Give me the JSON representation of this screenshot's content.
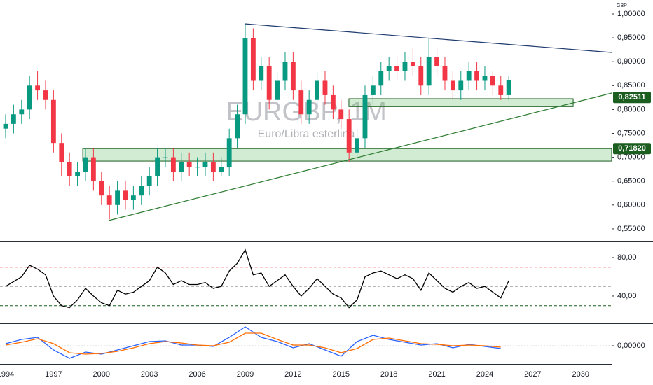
{
  "chart_data": [
    {
      "type": "candlestick",
      "title": "EURGBP, 1M",
      "subtitle": "Euro/Libra esterlina",
      "currency": "GBP",
      "up_color": "#089981",
      "down_color": "#f23645",
      "grid": false,
      "x": [
        1994.0,
        1994.5,
        1995.0,
        1995.5,
        1996.0,
        1996.5,
        1997.0,
        1997.5,
        1998.0,
        1998.5,
        1999.0,
        1999.5,
        2000.0,
        2000.5,
        2001.0,
        2001.5,
        2002.0,
        2002.5,
        2003.0,
        2003.5,
        2004.0,
        2004.5,
        2005.0,
        2005.5,
        2006.0,
        2006.5,
        2007.0,
        2007.5,
        2008.0,
        2008.5,
        2009.0,
        2009.5,
        2010.0,
        2010.5,
        2011.0,
        2011.5,
        2012.0,
        2012.5,
        2013.0,
        2013.5,
        2014.0,
        2014.5,
        2015.0,
        2015.5,
        2016.0,
        2016.5,
        2017.0,
        2017.5,
        2018.0,
        2018.5,
        2019.0,
        2019.5,
        2020.0,
        2020.5,
        2021.0,
        2021.5,
        2022.0,
        2022.5,
        2023.0,
        2023.5,
        2024.0,
        2024.5,
        2025.0,
        2025.5
      ],
      "open": [
        0.76,
        0.77,
        0.79,
        0.8,
        0.85,
        0.84,
        0.82,
        0.73,
        0.69,
        0.66,
        0.67,
        0.7,
        0.65,
        0.62,
        0.6,
        0.63,
        0.61,
        0.62,
        0.64,
        0.66,
        0.7,
        0.7,
        0.67,
        0.69,
        0.68,
        0.68,
        0.69,
        0.67,
        0.68,
        0.74,
        0.79,
        0.95,
        0.86,
        0.89,
        0.82,
        0.86,
        0.9,
        0.84,
        0.79,
        0.82,
        0.86,
        0.83,
        0.8,
        0.78,
        0.71,
        0.74,
        0.83,
        0.85,
        0.88,
        0.89,
        0.88,
        0.9,
        0.89,
        0.85,
        0.91,
        0.89,
        0.86,
        0.84,
        0.86,
        0.88,
        0.86,
        0.87,
        0.85,
        0.83
      ],
      "high": [
        0.79,
        0.81,
        0.82,
        0.87,
        0.88,
        0.86,
        0.84,
        0.75,
        0.71,
        0.69,
        0.72,
        0.72,
        0.67,
        0.64,
        0.65,
        0.65,
        0.64,
        0.66,
        0.68,
        0.72,
        0.72,
        0.72,
        0.71,
        0.71,
        0.7,
        0.71,
        0.71,
        0.7,
        0.76,
        0.81,
        0.98,
        0.97,
        0.91,
        0.91,
        0.88,
        0.92,
        0.92,
        0.86,
        0.84,
        0.88,
        0.88,
        0.85,
        0.82,
        0.8,
        0.76,
        0.85,
        0.87,
        0.9,
        0.91,
        0.91,
        0.92,
        0.93,
        0.91,
        0.95,
        0.93,
        0.91,
        0.88,
        0.88,
        0.9,
        0.9,
        0.89,
        0.88,
        0.87,
        0.87
      ],
      "low": [
        0.74,
        0.75,
        0.77,
        0.78,
        0.82,
        0.8,
        0.71,
        0.66,
        0.64,
        0.64,
        0.65,
        0.63,
        0.6,
        0.57,
        0.58,
        0.59,
        0.59,
        0.6,
        0.62,
        0.64,
        0.68,
        0.65,
        0.65,
        0.66,
        0.66,
        0.66,
        0.65,
        0.66,
        0.66,
        0.72,
        0.77,
        0.84,
        0.84,
        0.8,
        0.8,
        0.84,
        0.82,
        0.77,
        0.77,
        0.8,
        0.81,
        0.78,
        0.76,
        0.69,
        0.69,
        0.72,
        0.81,
        0.83,
        0.86,
        0.86,
        0.86,
        0.87,
        0.83,
        0.83,
        0.87,
        0.84,
        0.82,
        0.82,
        0.84,
        0.84,
        0.84,
        0.83,
        0.82,
        0.82
      ],
      "close": [
        0.77,
        0.79,
        0.8,
        0.85,
        0.84,
        0.82,
        0.73,
        0.69,
        0.66,
        0.67,
        0.7,
        0.65,
        0.62,
        0.6,
        0.63,
        0.61,
        0.62,
        0.64,
        0.66,
        0.7,
        0.7,
        0.67,
        0.69,
        0.68,
        0.68,
        0.69,
        0.67,
        0.68,
        0.74,
        0.79,
        0.95,
        0.86,
        0.89,
        0.82,
        0.86,
        0.9,
        0.84,
        0.79,
        0.82,
        0.86,
        0.83,
        0.8,
        0.78,
        0.71,
        0.74,
        0.83,
        0.85,
        0.88,
        0.89,
        0.88,
        0.9,
        0.89,
        0.85,
        0.91,
        0.89,
        0.86,
        0.84,
        0.86,
        0.88,
        0.86,
        0.87,
        0.85,
        0.83,
        0.862
      ],
      "xlim": [
        1993.65,
        2031.94
      ],
      "xticks": [
        1994,
        1997,
        2000,
        2003,
        2006,
        2009,
        2012,
        2015,
        2018,
        2021,
        2024,
        2027,
        2030
      ],
      "ylim": [
        0.5235,
        1.0293
      ],
      "yticks": [
        {
          "value": 0.55,
          "label": "0,55000"
        },
        {
          "value": 0.6,
          "label": "0,60000"
        },
        {
          "value": 0.65,
          "label": "0,65000"
        },
        {
          "value": 0.7,
          "label": "0,70000"
        },
        {
          "value": 0.75,
          "label": "0,75000"
        },
        {
          "value": 0.8,
          "label": "0,80000"
        },
        {
          "value": 0.85,
          "label": "0,85000"
        },
        {
          "value": 0.9,
          "label": "0,90000"
        },
        {
          "value": 0.95,
          "label": "0,95000"
        },
        {
          "value": 1.0,
          "label": "1,00000"
        }
      ],
      "zones": [
        {
          "x": [
            1998.83,
            2031.94
          ],
          "y": [
            0.692,
            0.7182
          ]
        },
        {
          "x": [
            2015.49,
            2029.53
          ],
          "y": [
            0.806,
            0.8226
          ]
        }
      ],
      "trendlines": [
        {
          "x": [
            2008.96,
            2031.94
          ],
          "y": [
            0.9795,
            0.9193
          ],
          "color": "#1e3a6e"
        },
        {
          "x": [
            2000.45,
            2031.94
          ],
          "y": [
            0.5675,
            0.8343
          ],
          "color": "#2e7d32"
        }
      ],
      "price_labels": [
        {
          "value": 0.82511,
          "label": "0,82511"
        },
        {
          "value": 0.7182,
          "label": "0,71820"
        }
      ],
      "price_label_color": "#1b5e20"
    },
    {
      "type": "line",
      "color": "#000000",
      "x": [
        1994.0,
        1994.5,
        1995.0,
        1995.5,
        1996.0,
        1996.5,
        1997.0,
        1997.5,
        1998.0,
        1998.5,
        1999.0,
        1999.5,
        2000.0,
        2000.5,
        2001.0,
        2001.5,
        2002.0,
        2002.5,
        2003.0,
        2003.5,
        2004.0,
        2004.5,
        2005.0,
        2005.5,
        2006.0,
        2006.5,
        2007.0,
        2007.5,
        2008.0,
        2008.5,
        2009.0,
        2009.5,
        2010.0,
        2010.5,
        2011.0,
        2011.5,
        2012.0,
        2012.5,
        2013.0,
        2013.5,
        2014.0,
        2014.5,
        2015.0,
        2015.5,
        2016.0,
        2016.5,
        2017.0,
        2017.5,
        2018.0,
        2018.5,
        2019.0,
        2019.5,
        2020.0,
        2020.5,
        2021.0,
        2021.5,
        2022.0,
        2022.5,
        2023.0,
        2023.5,
        2024.0,
        2024.5,
        2025.0,
        2025.5
      ],
      "values": [
        50,
        55,
        60,
        72,
        68,
        62,
        40,
        30,
        28,
        36,
        48,
        40,
        33,
        30,
        46,
        42,
        44,
        50,
        56,
        70,
        64,
        52,
        56,
        52,
        52,
        54,
        48,
        50,
        66,
        74,
        88,
        62,
        64,
        50,
        56,
        62,
        50,
        40,
        48,
        58,
        50,
        42,
        38,
        28,
        36,
        60,
        64,
        66,
        62,
        58,
        62,
        58,
        46,
        64,
        56,
        48,
        44,
        50,
        54,
        48,
        50,
        44,
        38,
        56
      ],
      "xlim": [
        1993.65,
        2031.94
      ],
      "ylim": [
        11.6,
        96.7
      ],
      "yticks": [
        {
          "value": 40,
          "label": "40,00"
        },
        {
          "value": 80,
          "label": "80,00"
        }
      ],
      "levels": [
        {
          "value": 70,
          "color": "#f23645"
        },
        {
          "value": 50,
          "color": "#9e9e9e"
        },
        {
          "value": 30,
          "color": "#1b5e20"
        }
      ]
    },
    {
      "type": "line",
      "x": [
        1994,
        1995,
        1996,
        1997,
        1998,
        1999,
        2000,
        2001,
        2002,
        2003,
        2004,
        2005,
        2006,
        2007,
        2008,
        2009,
        2010,
        2011,
        2012,
        2013,
        2014,
        2015,
        2016,
        2017,
        2018,
        2019,
        2020,
        2021,
        2022,
        2023,
        2024,
        2025
      ],
      "series": [
        {
          "color": "#2962ff",
          "values": [
            0.003,
            0.009,
            0.012,
            -0.006,
            -0.018,
            -0.009,
            -0.012,
            -0.006,
            0,
            0.006,
            0.007,
            0.001,
            0.001,
            -0.001,
            0.012,
            0.027,
            0.012,
            0.006,
            -0.003,
            0.003,
            -0.006,
            -0.015,
            0.006,
            0.015,
            0.009,
            0.005,
            0.001,
            0.003,
            -0.003,
            0.002,
            -0.001,
            -0.004
          ]
        },
        {
          "color": "#ff6d00",
          "values": [
            0.001,
            0.005,
            0.01,
            0.003,
            -0.01,
            -0.012,
            -0.011,
            -0.008,
            -0.003,
            0.003,
            0.006,
            0.004,
            0.001,
            0,
            0.005,
            0.018,
            0.018,
            0.009,
            0.001,
            0.001,
            -0.003,
            -0.01,
            -0.004,
            0.009,
            0.011,
            0.007,
            0.003,
            0.002,
            0,
            0.001,
            0,
            -0.002
          ]
        }
      ],
      "xlim": [
        1993.65,
        2031.94
      ],
      "ylim": [
        -0.026,
        0.032
      ],
      "yticks": [
        {
          "value": 0,
          "label": "0,00000"
        }
      ]
    }
  ]
}
